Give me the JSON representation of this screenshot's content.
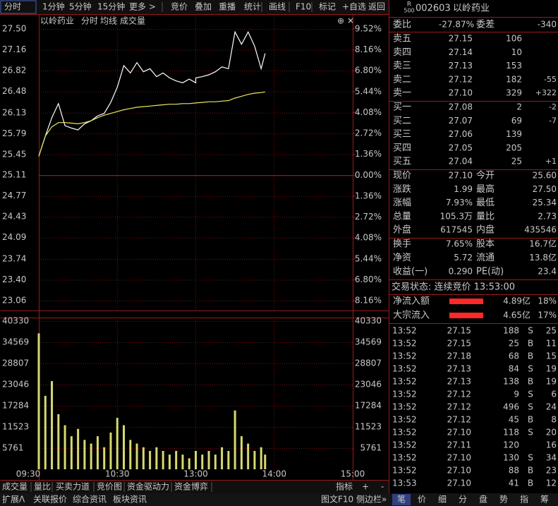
{
  "toolbar": [
    "分时",
    "1分钟",
    "5分钟",
    "15分钟",
    "更多 >",
    "竞价",
    "叠加",
    "重播",
    "统计",
    "画线",
    "F10",
    "标记",
    "+自选",
    "返回"
  ],
  "chart_data": [
    {
      "type": "line",
      "title": "以岭药业",
      "x": [
        "09:30",
        "09:35",
        "09:40",
        "09:45",
        "09:50",
        "09:55",
        "10:00",
        "10:05",
        "10:10",
        "10:15",
        "10:20",
        "10:25",
        "10:30",
        "10:35",
        "10:40",
        "10:45",
        "10:50",
        "10:55",
        "11:00",
        "11:05",
        "11:10",
        "11:15",
        "11:20",
        "11:25",
        "11:30",
        "13:00",
        "13:05",
        "13:10",
        "13:15",
        "13:20",
        "13:25",
        "13:30",
        "13:35",
        "13:40",
        "13:45",
        "13:50",
        "13:53"
      ],
      "series": [
        {
          "name": "分时",
          "color": "#ffffff",
          "values": [
            25.42,
            25.75,
            26.05,
            26.28,
            25.92,
            25.88,
            25.85,
            25.95,
            26.0,
            26.08,
            26.12,
            26.3,
            26.55,
            26.9,
            26.78,
            26.95,
            26.8,
            26.85,
            26.72,
            26.78,
            26.7,
            26.65,
            26.62,
            26.68,
            26.62,
            26.7,
            26.72,
            26.75,
            26.8,
            26.88,
            26.85,
            27.45,
            27.25,
            27.45,
            27.22,
            26.85,
            27.1
          ]
        },
        {
          "name": "均线",
          "color": "#e8e860",
          "values": [
            25.42,
            25.75,
            25.9,
            25.97,
            25.97,
            25.96,
            25.95,
            25.97,
            26.0,
            26.05,
            26.09,
            26.12,
            26.15,
            26.18,
            26.2,
            26.22,
            26.23,
            26.24,
            26.25,
            26.26,
            26.27,
            26.27,
            26.28,
            26.28,
            26.29,
            26.29,
            26.3,
            26.31,
            26.31,
            26.32,
            26.33,
            26.37,
            26.4,
            26.43,
            26.45,
            26.46,
            26.47
          ]
        }
      ],
      "ylim": [
        23.06,
        27.5
      ],
      "yticks": [
        {
          "value": 27.5,
          "label": "27.50"
        },
        27.16,
        26.82,
        26.48,
        26.13,
        25.79,
        25.45,
        25.11,
        24.77,
        24.43,
        24.09,
        23.74,
        {
          "value": 23.4,
          "label": "23.40"
        },
        23.06
      ],
      "y2lim": [
        -8.16,
        9.52
      ],
      "y2ticks": [
        {
          "value": 9.52,
          "label": "9.52%"
        },
        {
          "value": 8.16,
          "label": "8.16%"
        },
        {
          "value": 6.8,
          "label": "6.80%"
        },
        {
          "value": 5.44,
          "label": "5.44%"
        },
        {
          "value": 4.08,
          "label": "4.08%"
        },
        {
          "value": 2.72,
          "label": "2.72%"
        },
        {
          "value": 1.36,
          "label": "1.36%"
        },
        {
          "value": 0,
          "label": "0.00%"
        },
        {
          "value": -1.36,
          "label": "1.36%"
        },
        {
          "value": -2.72,
          "label": "2.72%"
        },
        {
          "value": -4.08,
          "label": "4.08%"
        },
        {
          "value": -5.44,
          "label": "5.44%"
        },
        {
          "value": -6.8,
          "label": "6.80%"
        },
        {
          "value": -8.16,
          "label": "8.16%"
        }
      ],
      "grid": true
    },
    {
      "type": "bar",
      "title": "成交量",
      "x": [
        "09:30",
        "09:35",
        "09:40",
        "09:45",
        "09:50",
        "09:55",
        "10:00",
        "10:05",
        "10:10",
        "10:15",
        "10:20",
        "10:25",
        "10:30",
        "10:35",
        "10:40",
        "10:45",
        "10:50",
        "10:55",
        "11:00",
        "11:05",
        "11:10",
        "11:15",
        "11:20",
        "11:25",
        "11:30",
        "13:00",
        "13:05",
        "13:10",
        "13:15",
        "13:20",
        "13:25",
        "13:30",
        "13:35",
        "13:40",
        "13:45",
        "13:50",
        "13:53"
      ],
      "values": [
        37000,
        20000,
        24000,
        15000,
        12000,
        9000,
        11000,
        8000,
        7000,
        9000,
        6000,
        10000,
        14000,
        12000,
        8000,
        7000,
        6000,
        5000,
        6000,
        5000,
        4000,
        5000,
        4000,
        3000,
        4000,
        5000,
        4000,
        5000,
        4000,
        6000,
        5000,
        16000,
        9000,
        7000,
        5000,
        6000,
        4000
      ],
      "color": "#d8d870",
      "ylim": [
        0,
        40330
      ],
      "yticks": [
        40330,
        34569,
        28807,
        23046,
        17284,
        11523,
        5761
      ],
      "xticks": [
        "09:30",
        "10:30",
        "13:00",
        "14:00",
        "15:00"
      ],
      "grid": true
    }
  ],
  "bottom_tabs": [
    "成交量",
    "量比",
    "买卖力道",
    "竞价图",
    "资金驱动力",
    "资金博弈",
    "指标",
    "+",
    "-"
  ],
  "bottom_bar": [
    "扩展ᐱ",
    "关联报价",
    "综合资讯",
    "板块资讯",
    "图文F10",
    "侧边栏»"
  ],
  "side_tabs": [
    "笔",
    "价",
    "细",
    "分",
    "盘",
    "势",
    "指",
    "筹"
  ],
  "quote": {
    "badge": [
      "R",
      "500"
    ],
    "code": "002603",
    "name": "以岭药业",
    "weibi": [
      "委比",
      "-27.87%",
      "委差",
      "-340"
    ],
    "asks": [
      [
        "卖五",
        "27.15",
        "106"
      ],
      [
        "卖四",
        "27.14",
        "10"
      ],
      [
        "卖三",
        "27.13",
        "153"
      ],
      [
        "卖二",
        "27.12",
        "182",
        "-55"
      ],
      [
        "卖一",
        "27.10",
        "329",
        "+322"
      ]
    ],
    "bids": [
      [
        "买一",
        "27.08",
        "2",
        "-2"
      ],
      [
        "买二",
        "27.07",
        "69",
        "-7"
      ],
      [
        "买三",
        "27.06",
        "139"
      ],
      [
        "买四",
        "27.05",
        "205"
      ],
      [
        "买五",
        "27.04",
        "25",
        "+1"
      ]
    ],
    "stats": [
      [
        "现价",
        "27.10",
        "今开",
        "25.60"
      ],
      [
        "涨跌",
        "1.99",
        "最高",
        "27.50"
      ],
      [
        "涨幅",
        "7.93%",
        "最低",
        "25.34"
      ],
      [
        "总量",
        "105.3万",
        "量比",
        "2.73"
      ],
      [
        "外盘",
        "617545",
        "内盘",
        "435546"
      ]
    ],
    "stats2": [
      [
        "换手",
        "7.65%",
        "股本",
        "16.7亿"
      ],
      [
        "净资",
        "5.72",
        "流通",
        "13.8亿"
      ],
      [
        "收益(一)",
        "0.290",
        "PE(动)",
        "23.4"
      ]
    ],
    "status": "交易状态: 连续竞价 13:53:00",
    "flows": [
      [
        "净流入额",
        "4.89亿",
        "18%"
      ],
      [
        "大宗流入",
        "4.65亿",
        "17%"
      ]
    ],
    "trades": [
      {
        "time": "13:52",
        "price": "27.15",
        "volume": "188",
        "side": "S",
        "count": "25"
      },
      {
        "time": "13:52",
        "price": "27.15",
        "volume": "25",
        "side": "B",
        "count": "11"
      },
      {
        "time": "13:52",
        "price": "27.18",
        "volume": "68",
        "side": "B",
        "count": "15"
      },
      {
        "time": "13:52",
        "price": "27.13",
        "volume": "84",
        "side": "S",
        "count": "19"
      },
      {
        "time": "13:52",
        "price": "27.13",
        "volume": "138",
        "side": "B",
        "count": "19"
      },
      {
        "time": "13:52",
        "price": "27.12",
        "volume": "9",
        "side": "S",
        "count": "6"
      },
      {
        "time": "13:52",
        "price": "27.12",
        "volume": "496",
        "side": "S",
        "count": "24"
      },
      {
        "time": "13:52",
        "price": "27.12",
        "volume": "45",
        "side": "B",
        "count": "8"
      },
      {
        "time": "13:52",
        "price": "27.10",
        "volume": "118",
        "side": "S",
        "count": "20"
      },
      {
        "time": "13:52",
        "price": "27.11",
        "volume": "120",
        "count": "16"
      },
      {
        "time": "13:52",
        "price": "27.10",
        "volume": "130",
        "side": "S",
        "count": "34"
      },
      {
        "time": "13:52",
        "price": "27.10",
        "volume": "88",
        "side": "B",
        "count": "23"
      },
      {
        "time": "13:53",
        "price": "27.10",
        "volume": "41",
        "side": "B",
        "count": "12"
      }
    ]
  }
}
